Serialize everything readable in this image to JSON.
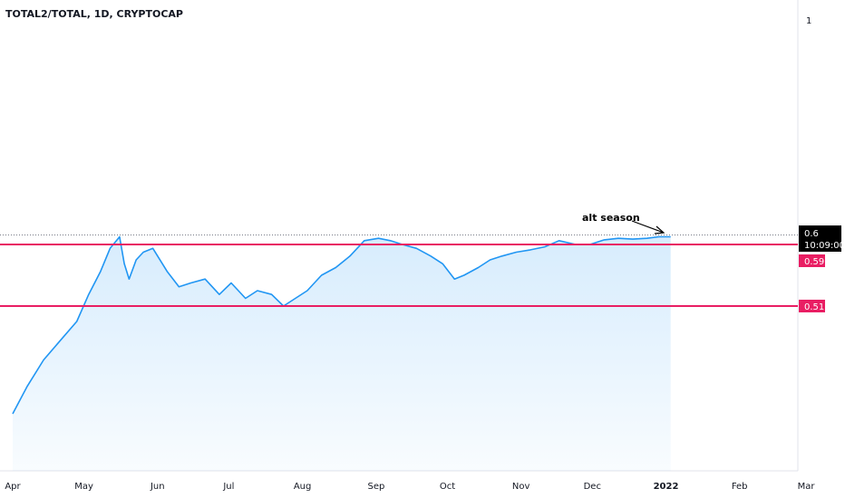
{
  "header": {
    "title": "TOTAL2/TOTAL, 1D, CRYPTOCAP"
  },
  "price_axis": {
    "top_label": "1",
    "last_value": "0.6",
    "countdown": "10:09:00",
    "line_tag_upper": "0.59",
    "line_tag_lower": "0.51"
  },
  "annotation": {
    "text": "alt season"
  },
  "colors": {
    "line": "#2196f3",
    "fill": "#2196f3",
    "hline": "#e91e63",
    "tag_last_bg": "#000000"
  },
  "chart_data": {
    "type": "area",
    "title": "TOTAL2/TOTAL, 1D, CRYPTOCAP",
    "x_tick_labels": [
      "Apr",
      "May",
      "Jun",
      "Jul",
      "Aug",
      "Sep",
      "Oct",
      "Nov",
      "Dec",
      "2022",
      "Feb",
      "Mar"
    ],
    "horizontal_lines": [
      0.59,
      0.51
    ],
    "last_value": 0.6,
    "series": [
      {
        "x": [
          "2021-04-01",
          "2021-04-07",
          "2021-04-14",
          "2021-04-21",
          "2021-04-28",
          "2021-05-03",
          "2021-05-08",
          "2021-05-12",
          "2021-05-16",
          "2021-05-18",
          "2021-05-20",
          "2021-05-23",
          "2021-05-26",
          "2021-05-30",
          "2021-06-05",
          "2021-06-10",
          "2021-06-15",
          "2021-06-21",
          "2021-06-27",
          "2021-07-02",
          "2021-07-08",
          "2021-07-13",
          "2021-07-19",
          "2021-07-24",
          "2021-07-29",
          "2021-08-03",
          "2021-08-09",
          "2021-08-15",
          "2021-08-21",
          "2021-08-27",
          "2021-09-02",
          "2021-09-07",
          "2021-09-12",
          "2021-09-18",
          "2021-09-24",
          "2021-09-29",
          "2021-10-04",
          "2021-10-08",
          "2021-10-14",
          "2021-10-19",
          "2021-10-24",
          "2021-10-30",
          "2021-11-05",
          "2021-11-11",
          "2021-11-17",
          "2021-11-24",
          "2021-11-30",
          "2021-12-06",
          "2021-12-12",
          "2021-12-18",
          "2021-12-24",
          "2021-12-29",
          "2022-01-03"
        ],
        "values": [
          0.37,
          0.405,
          0.44,
          0.465,
          0.49,
          0.525,
          0.555,
          0.585,
          0.6,
          0.565,
          0.545,
          0.57,
          0.58,
          0.585,
          0.555,
          0.535,
          0.54,
          0.545,
          0.525,
          0.54,
          0.52,
          0.53,
          0.525,
          0.51,
          0.52,
          0.53,
          0.55,
          0.56,
          0.575,
          0.595,
          0.598,
          0.595,
          0.59,
          0.585,
          0.575,
          0.565,
          0.545,
          0.55,
          0.56,
          0.57,
          0.575,
          0.58,
          0.583,
          0.587,
          0.595,
          0.59,
          0.59,
          0.596,
          0.598,
          0.597,
          0.598,
          0.6,
          0.6
        ]
      }
    ]
  }
}
